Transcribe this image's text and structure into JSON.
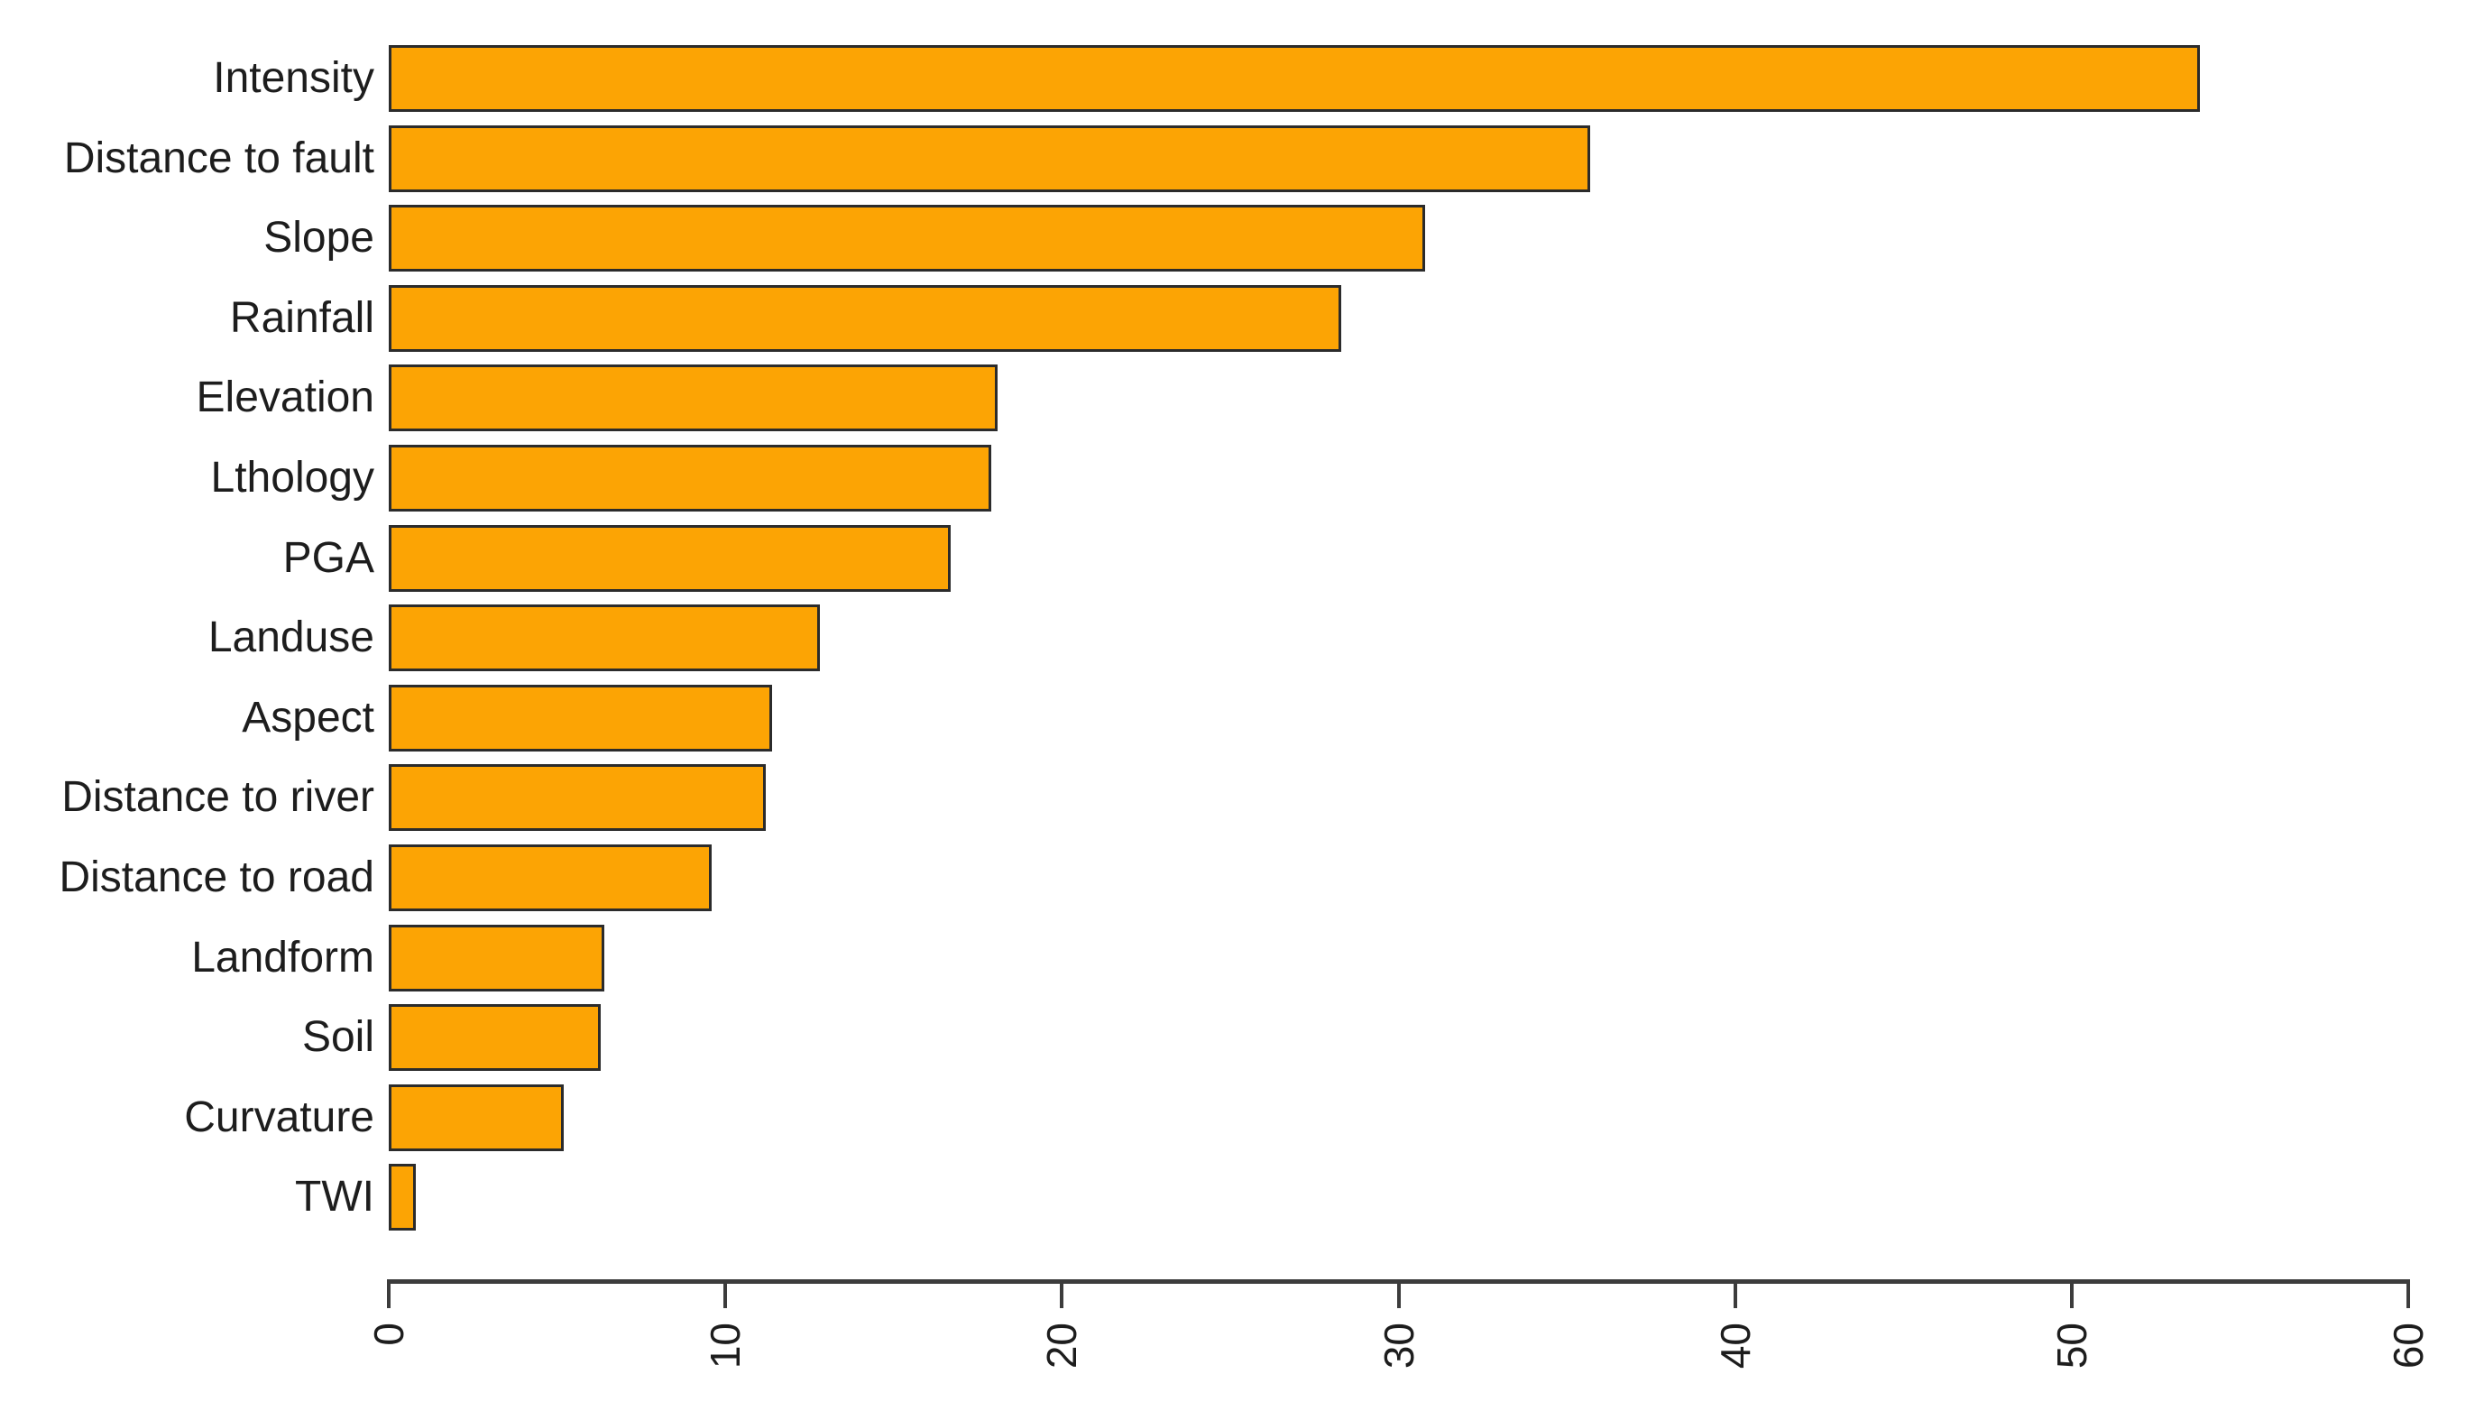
{
  "chart_data": {
    "type": "bar",
    "orientation": "horizontal",
    "title": "",
    "xlabel": "",
    "ylabel": "",
    "grid": false,
    "legend": null,
    "categories": [
      "Intensity",
      "Distance to fault",
      "Slope",
      "Rainfall",
      "Elevation",
      "Lthology",
      "PGA",
      "Landuse",
      "Aspect",
      "Distance to river",
      "Distance to road",
      "Landform",
      "Soil",
      "Curvature",
      "TWI"
    ],
    "values": [
      53.8,
      35.7,
      30.8,
      28.3,
      18.1,
      17.9,
      16.7,
      12.8,
      11.4,
      11.2,
      9.6,
      6.4,
      6.3,
      5.2,
      0.8
    ],
    "xlim": [
      0,
      60
    ],
    "xtick_labels": [
      "0",
      "10",
      "20",
      "30",
      "40",
      "50",
      "60"
    ],
    "xtick_values": [
      0,
      10,
      20,
      30,
      40,
      50,
      60
    ],
    "tick_label_rotation_deg": -90,
    "colors": {
      "bar_fill": "#FCA404",
      "bar_border": "#2b2b2b",
      "axis": "#3c3c3c",
      "text": "#1d1d1d",
      "background": "#ffffff"
    }
  }
}
